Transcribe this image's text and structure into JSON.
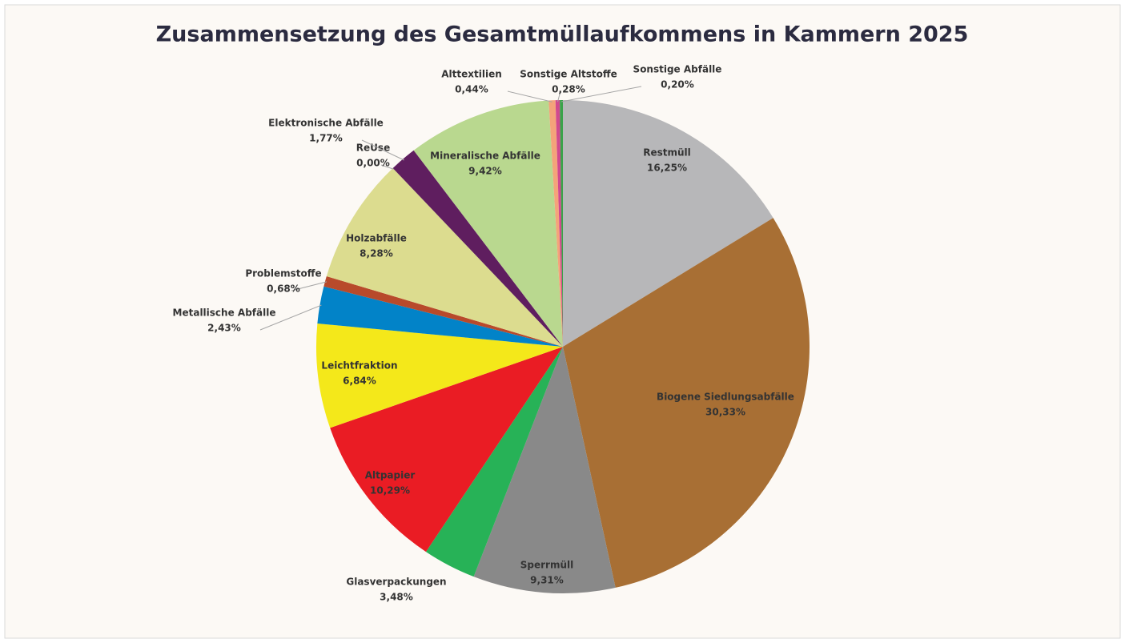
{
  "chart_data": {
    "type": "pie",
    "title": "Zusammensetzung des Gesamtmüllaufkommens in Kammern 2025",
    "categories": [
      "Restmüll",
      "Biogene Siedlungsabfälle",
      "Sperrmüll",
      "Glasverpackungen",
      "Altpapier",
      "Leichtfraktion",
      "Metallische Abfälle",
      "Problemstoffe",
      "Holzabfälle",
      "ReUse",
      "Elektronische Abfälle",
      "Mineralische Abfälle",
      "Alttextilien",
      "Sonstige Altstoffe",
      "Sonstige Abfälle"
    ],
    "values": [
      16.25,
      30.33,
      9.31,
      3.48,
      10.29,
      6.84,
      2.43,
      0.68,
      8.28,
      0.0,
      1.77,
      9.42,
      0.44,
      0.28,
      0.2
    ],
    "value_labels": [
      "16,25%",
      "30,33%",
      "9,31%",
      "3,48%",
      "10,29%",
      "6,84%",
      "2,43%",
      "0,68%",
      "8,28%",
      "0,00%",
      "1,77%",
      "9,42%",
      "0,44%",
      "0,28%",
      "0,20%"
    ],
    "colors": [
      "#b7b7b9",
      "#a86f34",
      "#898989",
      "#27b257",
      "#ea1c24",
      "#f4e81a",
      "#0283c8",
      "#b84a2b",
      "#dcdc8f",
      "#7f7f7f",
      "#5f1e5f",
      "#b9d88f",
      "#f4a37a",
      "#d1498e",
      "#3aa34a"
    ]
  }
}
